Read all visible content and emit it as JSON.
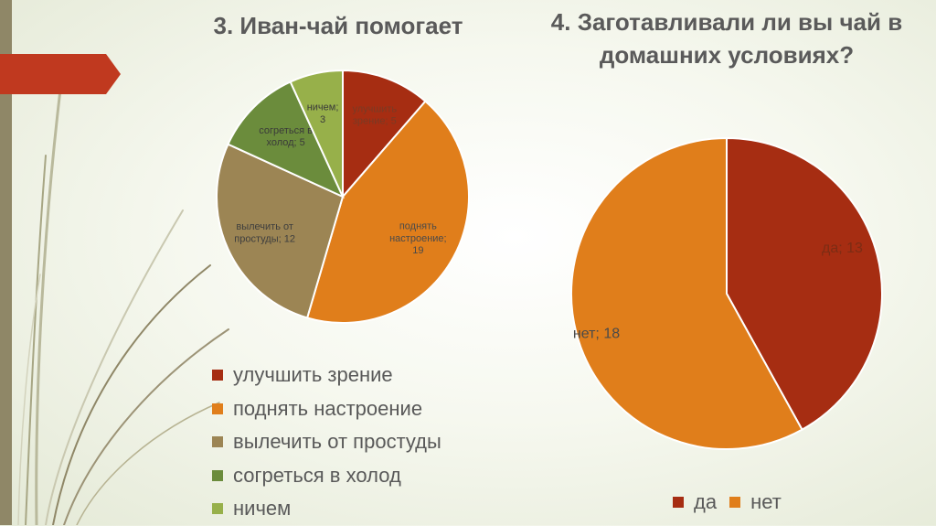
{
  "slide": {
    "colors": {
      "sidebar": "#8f8767",
      "accent": "#c0391f",
      "text": "#5a5a5a"
    }
  },
  "chart_data": [
    {
      "type": "pie",
      "title": "3. Иван-чай помогает",
      "categories": [
        "улучшить зрение",
        "поднять настроение",
        "вылечить от простуды",
        "согреться в холод",
        "ничем"
      ],
      "values": [
        5,
        19,
        12,
        5,
        3
      ],
      "slice_labels": [
        [
          "улучшить",
          "зрение; 5"
        ],
        [
          "поднять",
          "настроение;",
          "19"
        ],
        [
          "вылечить от",
          "простуды; 12"
        ],
        [
          "согреться в",
          "холод; 5"
        ],
        [
          "ничем;",
          "3"
        ]
      ],
      "colors": [
        "#a62d12",
        "#e07e1b",
        "#9c8554",
        "#6b8c3c",
        "#97b04a"
      ],
      "legend_position": "bottom"
    },
    {
      "type": "pie",
      "title": "4. Заготавливали ли вы чай в домашних условиях?",
      "categories": [
        "да",
        "нет"
      ],
      "values": [
        13,
        18
      ],
      "slice_labels": [
        [
          "да; 13"
        ],
        [
          "нет; 18"
        ]
      ],
      "colors": [
        "#a62d12",
        "#e07e1b"
      ],
      "legend_position": "bottom"
    }
  ]
}
